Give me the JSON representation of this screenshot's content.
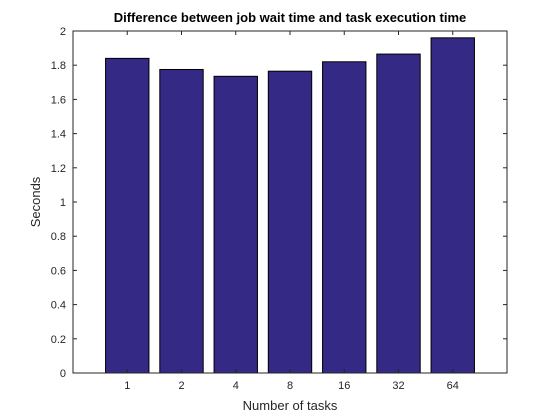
{
  "chart_data": {
    "type": "bar",
    "title": "Difference between job wait time and task execution time",
    "xlabel": "Number of tasks",
    "ylabel": "Seconds",
    "categories": [
      "1",
      "2",
      "4",
      "8",
      "16",
      "32",
      "64"
    ],
    "values": [
      1.84,
      1.775,
      1.735,
      1.765,
      1.82,
      1.865,
      1.96
    ],
    "ylim": [
      0,
      2
    ],
    "yticks": [
      0,
      0.2,
      0.4,
      0.6,
      0.8,
      1,
      1.2,
      1.4,
      1.6,
      1.8,
      2
    ],
    "ytick_labels": [
      "0",
      "0.2",
      "0.4",
      "0.6",
      "0.8",
      "1",
      "1.2",
      "1.4",
      "1.6",
      "1.8",
      "2"
    ],
    "grid": false,
    "legend": "none",
    "bar_color": "#342985",
    "edge_color": "#000000"
  }
}
